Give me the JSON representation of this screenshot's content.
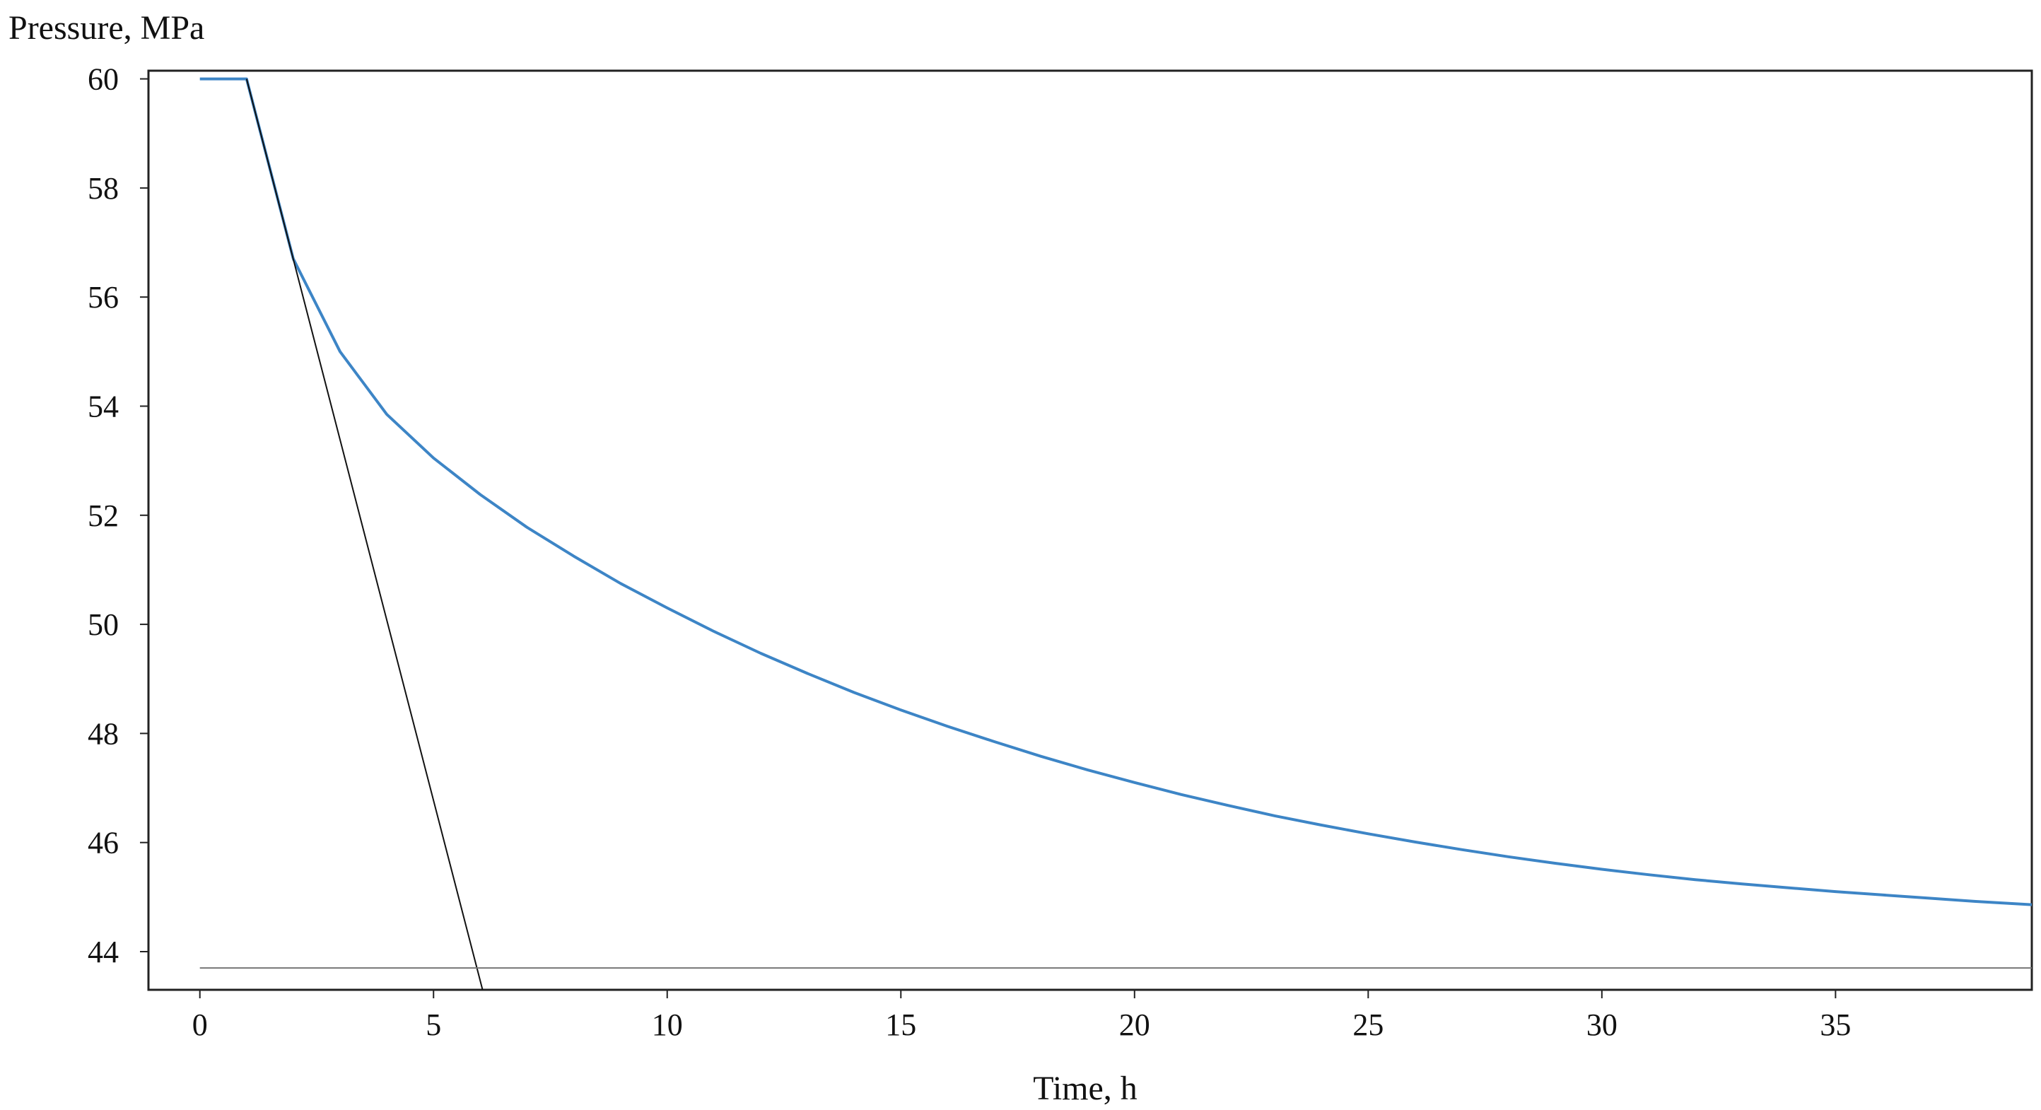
{
  "chart_data": {
    "type": "line",
    "title": "",
    "xlabel": "Time, h",
    "ylabel": "Pressure, MPa",
    "xlim": [
      -1.1,
      39.2
    ],
    "ylim": [
      43.3,
      60.15
    ],
    "xticks": [
      0,
      5,
      10,
      15,
      20,
      25,
      30,
      35
    ],
    "yticks": [
      44,
      46,
      48,
      50,
      52,
      54,
      56,
      58,
      60
    ],
    "grid": false,
    "legend": "none",
    "series": [
      {
        "color": "#3d85c6",
        "x": [
          0,
          1,
          2,
          3,
          4,
          5,
          6,
          7,
          8,
          9,
          10,
          11,
          12,
          13,
          14,
          15,
          16,
          17,
          18,
          19,
          20,
          21,
          22,
          23,
          24,
          25,
          26,
          27,
          28,
          29,
          30,
          31,
          32,
          33,
          34,
          35,
          36,
          37,
          38,
          39.2
        ],
        "y": [
          60.0,
          60.0,
          56.7,
          55.0,
          53.85,
          53.05,
          52.38,
          51.78,
          51.25,
          50.75,
          50.3,
          49.87,
          49.47,
          49.1,
          48.75,
          48.43,
          48.13,
          47.85,
          47.58,
          47.33,
          47.1,
          46.88,
          46.68,
          46.49,
          46.32,
          46.16,
          46.01,
          45.87,
          45.74,
          45.62,
          45.51,
          45.41,
          45.32,
          45.24,
          45.17,
          45.1,
          45.04,
          44.98,
          44.92,
          44.86
        ]
      },
      {
        "color": "#111111",
        "x": [
          1,
          6.05
        ],
        "y": [
          60.0,
          43.3
        ]
      },
      {
        "color": "#777777",
        "x": [
          0,
          39.2
        ],
        "y": [
          43.7,
          43.7
        ]
      }
    ]
  }
}
